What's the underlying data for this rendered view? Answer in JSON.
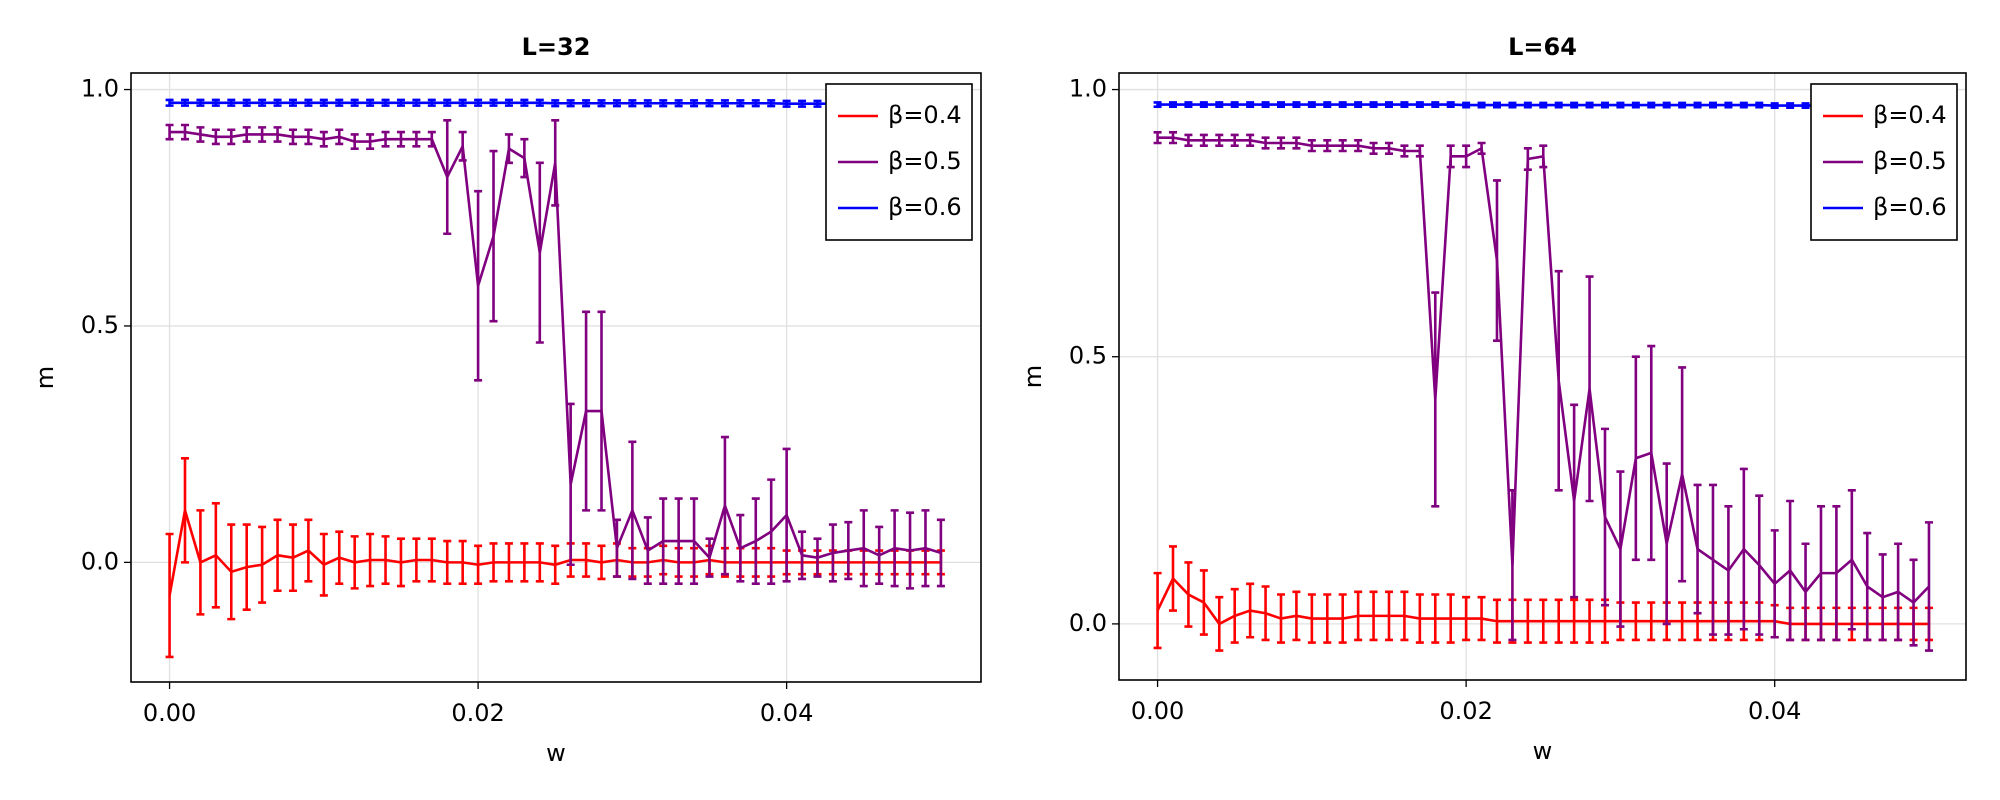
{
  "chart_data": [
    {
      "type": "line",
      "title": "L=32",
      "xlabel": "w",
      "ylabel": "m",
      "grid": true,
      "legend": "top-right",
      "x": [
        0,
        0.001,
        0.002,
        0.003,
        0.004,
        0.005,
        0.006,
        0.007,
        0.008,
        0.009,
        0.01,
        0.011,
        0.012,
        0.013,
        0.014,
        0.015,
        0.016,
        0.017,
        0.018,
        0.019,
        0.02,
        0.021,
        0.022,
        0.023,
        0.024,
        0.025,
        0.026,
        0.027,
        0.028,
        0.029,
        0.03,
        0.031,
        0.032,
        0.033,
        0.034,
        0.035,
        0.036,
        0.037,
        0.038,
        0.039,
        0.04,
        0.041,
        0.042,
        0.043,
        0.044,
        0.045,
        0.046,
        0.047,
        0.048,
        0.049,
        0.05
      ],
      "xlim": [
        -0.0025,
        0.0526
      ],
      "ylim": [
        -0.253,
        1.035
      ],
      "xticks": [
        {
          "value": 0,
          "label": "0.00"
        },
        {
          "value": 0.02,
          "label": "0.02"
        },
        {
          "value": 0.04,
          "label": "0.04"
        }
      ],
      "yticks": [
        {
          "value": 0,
          "label": "0.0"
        },
        {
          "value": 0.5,
          "label": "0.5"
        },
        {
          "value": 1,
          "label": "1.0"
        }
      ],
      "series": [
        {
          "name": "β=0.4",
          "color": "#ff0000",
          "values": [
            -0.07,
            0.11,
            0,
            0.015,
            -0.02,
            -0.01,
            -0.005,
            0.015,
            0.01,
            0.025,
            -0.005,
            0.01,
            0,
            0.005,
            0.005,
            0,
            0.005,
            0.005,
            0,
            0,
            -0.005,
            0,
            0,
            0,
            0,
            -0.005,
            0.005,
            0.005,
            0,
            0.005,
            0,
            0,
            0.005,
            0,
            0,
            0.005,
            0,
            0,
            0,
            0,
            0,
            0,
            0,
            0,
            0,
            0,
            0,
            0,
            0,
            0,
            0
          ],
          "errors": [
            0.13,
            0.11,
            0.11,
            0.11,
            0.1,
            0.09,
            0.08,
            0.075,
            0.07,
            0.065,
            0.065,
            0.055,
            0.055,
            0.055,
            0.05,
            0.05,
            0.045,
            0.045,
            0.045,
            0.045,
            0.04,
            0.04,
            0.04,
            0.04,
            0.04,
            0.04,
            0.035,
            0.035,
            0.035,
            0.035,
            0.03,
            0.03,
            0.03,
            0.03,
            0.03,
            0.03,
            0.03,
            0.03,
            0.03,
            0.03,
            0.025,
            0.025,
            0.025,
            0.025,
            0.025,
            0.025,
            0.025,
            0.025,
            0.025,
            0.025,
            0.025
          ]
        },
        {
          "name": "β=0.5",
          "color": "#800080",
          "values": [
            0.91,
            0.91,
            0.905,
            0.9,
            0.9,
            0.905,
            0.905,
            0.905,
            0.9,
            0.9,
            0.895,
            0.9,
            0.89,
            0.89,
            0.895,
            0.895,
            0.895,
            0.895,
            0.815,
            0.88,
            0.585,
            0.69,
            0.875,
            0.855,
            0.655,
            0.845,
            0.165,
            0.32,
            0.32,
            0.03,
            0.11,
            0.025,
            0.045,
            0.045,
            0.045,
            0.01,
            0.12,
            0.03,
            0.045,
            0.065,
            0.1,
            0.015,
            0.01,
            0.02,
            0.025,
            0.03,
            0.015,
            0.03,
            0.025,
            0.03,
            0.02
          ],
          "errors": [
            0.015,
            0.015,
            0.015,
            0.015,
            0.015,
            0.015,
            0.015,
            0.015,
            0.015,
            0.015,
            0.015,
            0.015,
            0.015,
            0.015,
            0.015,
            0.015,
            0.015,
            0.015,
            0.12,
            0.03,
            0.2,
            0.18,
            0.03,
            0.04,
            0.19,
            0.09,
            0.17,
            0.21,
            0.21,
            0.06,
            0.145,
            0.07,
            0.09,
            0.09,
            0.09,
            0.04,
            0.145,
            0.07,
            0.09,
            0.11,
            0.14,
            0.05,
            0.04,
            0.06,
            0.06,
            0.08,
            0.06,
            0.08,
            0.08,
            0.08,
            0.07
          ]
        },
        {
          "name": "β=0.6",
          "color": "#0000ff",
          "values": [
            0.972,
            0.972,
            0.972,
            0.972,
            0.972,
            0.972,
            0.972,
            0.972,
            0.972,
            0.972,
            0.972,
            0.972,
            0.972,
            0.972,
            0.972,
            0.972,
            0.972,
            0.972,
            0.972,
            0.972,
            0.972,
            0.972,
            0.972,
            0.972,
            0.972,
            0.971,
            0.971,
            0.971,
            0.971,
            0.971,
            0.971,
            0.971,
            0.971,
            0.971,
            0.971,
            0.971,
            0.971,
            0.971,
            0.971,
            0.971,
            0.97,
            0.97,
            0.97,
            0.97,
            0.97,
            0.97,
            0.97,
            0.97,
            0.97,
            0.97,
            0.97
          ],
          "errors": [
            0.006,
            0.006,
            0.006,
            0.006,
            0.006,
            0.006,
            0.006,
            0.006,
            0.006,
            0.006,
            0.006,
            0.006,
            0.006,
            0.006,
            0.006,
            0.006,
            0.006,
            0.006,
            0.006,
            0.006,
            0.006,
            0.006,
            0.006,
            0.006,
            0.006,
            0.006,
            0.006,
            0.006,
            0.006,
            0.006,
            0.006,
            0.006,
            0.006,
            0.006,
            0.006,
            0.006,
            0.006,
            0.006,
            0.006,
            0.006,
            0.006,
            0.006,
            0.006,
            0.006,
            0.006,
            0.006,
            0.006,
            0.006,
            0.006,
            0.006,
            0.006
          ]
        }
      ]
    },
    {
      "type": "line",
      "title": "L=64",
      "xlabel": "w",
      "ylabel": "m",
      "grid": true,
      "legend": "top-right",
      "x": [
        0,
        0.001,
        0.002,
        0.003,
        0.004,
        0.005,
        0.006,
        0.007,
        0.008,
        0.009,
        0.01,
        0.011,
        0.012,
        0.013,
        0.014,
        0.015,
        0.016,
        0.017,
        0.018,
        0.019,
        0.02,
        0.021,
        0.022,
        0.023,
        0.024,
        0.025,
        0.026,
        0.027,
        0.028,
        0.029,
        0.03,
        0.031,
        0.032,
        0.033,
        0.034,
        0.035,
        0.036,
        0.037,
        0.038,
        0.039,
        0.04,
        0.041,
        0.042,
        0.043,
        0.044,
        0.045,
        0.046,
        0.047,
        0.048,
        0.049,
        0.05
      ],
      "xlim": [
        -0.0025,
        0.0524
      ],
      "ylim": [
        -0.105,
        1.031
      ],
      "xticks": [
        {
          "value": 0,
          "label": "0.00"
        },
        {
          "value": 0.02,
          "label": "0.02"
        },
        {
          "value": 0.04,
          "label": "0.04"
        }
      ],
      "yticks": [
        {
          "value": 0,
          "label": "0.0"
        },
        {
          "value": 0.5,
          "label": "0.5"
        },
        {
          "value": 1,
          "label": "1.0"
        }
      ],
      "series": [
        {
          "name": "β=0.4",
          "color": "#ff0000",
          "values": [
            0.025,
            0.085,
            0.055,
            0.04,
            0,
            0.015,
            0.025,
            0.02,
            0.01,
            0.015,
            0.01,
            0.01,
            0.01,
            0.015,
            0.015,
            0.015,
            0.015,
            0.01,
            0.01,
            0.01,
            0.01,
            0.01,
            0.005,
            0.005,
            0.005,
            0.005,
            0.005,
            0.005,
            0.005,
            0.005,
            0.005,
            0.005,
            0.005,
            0.005,
            0.005,
            0.005,
            0.005,
            0.005,
            0.005,
            0.005,
            0.005,
            0,
            0,
            0,
            0,
            0,
            0,
            0,
            0,
            0,
            0
          ],
          "errors": [
            0.07,
            0.06,
            0.06,
            0.06,
            0.05,
            0.05,
            0.05,
            0.05,
            0.045,
            0.045,
            0.045,
            0.045,
            0.045,
            0.045,
            0.045,
            0.045,
            0.045,
            0.045,
            0.045,
            0.045,
            0.04,
            0.04,
            0.04,
            0.04,
            0.04,
            0.04,
            0.04,
            0.04,
            0.04,
            0.04,
            0.035,
            0.035,
            0.035,
            0.035,
            0.035,
            0.035,
            0.035,
            0.035,
            0.035,
            0.035,
            0.03,
            0.03,
            0.03,
            0.03,
            0.03,
            0.03,
            0.03,
            0.03,
            0.03,
            0.03,
            0.03
          ]
        },
        {
          "name": "β=0.5",
          "color": "#800080",
          "values": [
            0.91,
            0.91,
            0.905,
            0.905,
            0.905,
            0.905,
            0.905,
            0.9,
            0.9,
            0.9,
            0.895,
            0.895,
            0.895,
            0.895,
            0.89,
            0.89,
            0.885,
            0.885,
            0.42,
            0.875,
            0.875,
            0.89,
            0.68,
            0.11,
            0.87,
            0.875,
            0.455,
            0.23,
            0.44,
            0.2,
            0.14,
            0.31,
            0.32,
            0.15,
            0.28,
            0.14,
            0.12,
            0.1,
            0.14,
            0.11,
            0.075,
            0.1,
            0.06,
            0.095,
            0.095,
            0.12,
            0.07,
            0.05,
            0.06,
            0.04,
            0.07
          ],
          "errors": [
            0.01,
            0.01,
            0.01,
            0.01,
            0.01,
            0.01,
            0.01,
            0.01,
            0.01,
            0.01,
            0.01,
            0.01,
            0.01,
            0.01,
            0.01,
            0.01,
            0.01,
            0.01,
            0.2,
            0.02,
            0.02,
            0.01,
            0.15,
            0.14,
            0.02,
            0.02,
            0.205,
            0.18,
            0.21,
            0.165,
            0.145,
            0.19,
            0.2,
            0.15,
            0.2,
            0.12,
            0.14,
            0.12,
            0.15,
            0.13,
            0.1,
            0.13,
            0.09,
            0.125,
            0.125,
            0.13,
            0.1,
            0.08,
            0.09,
            0.08,
            0.12
          ]
        },
        {
          "name": "β=0.6",
          "color": "#0000ff",
          "values": [
            0.972,
            0.972,
            0.972,
            0.972,
            0.972,
            0.972,
            0.972,
            0.972,
            0.972,
            0.972,
            0.972,
            0.972,
            0.972,
            0.972,
            0.972,
            0.972,
            0.972,
            0.972,
            0.972,
            0.972,
            0.971,
            0.971,
            0.971,
            0.971,
            0.971,
            0.971,
            0.971,
            0.971,
            0.971,
            0.971,
            0.971,
            0.971,
            0.971,
            0.971,
            0.971,
            0.971,
            0.971,
            0.971,
            0.971,
            0.971,
            0.97,
            0.97,
            0.97,
            0.97,
            0.97,
            0.97,
            0.97,
            0.97,
            0.97,
            0.97,
            0.97
          ],
          "errors": [
            0.004,
            0.004,
            0.004,
            0.004,
            0.004,
            0.004,
            0.004,
            0.004,
            0.004,
            0.004,
            0.004,
            0.004,
            0.004,
            0.004,
            0.004,
            0.004,
            0.004,
            0.004,
            0.004,
            0.004,
            0.004,
            0.004,
            0.004,
            0.004,
            0.004,
            0.004,
            0.004,
            0.004,
            0.004,
            0.004,
            0.004,
            0.004,
            0.004,
            0.004,
            0.004,
            0.004,
            0.004,
            0.004,
            0.004,
            0.004,
            0.004,
            0.004,
            0.004,
            0.004,
            0.004,
            0.004,
            0.004,
            0.004,
            0.004,
            0.004,
            0.004
          ]
        }
      ]
    }
  ]
}
